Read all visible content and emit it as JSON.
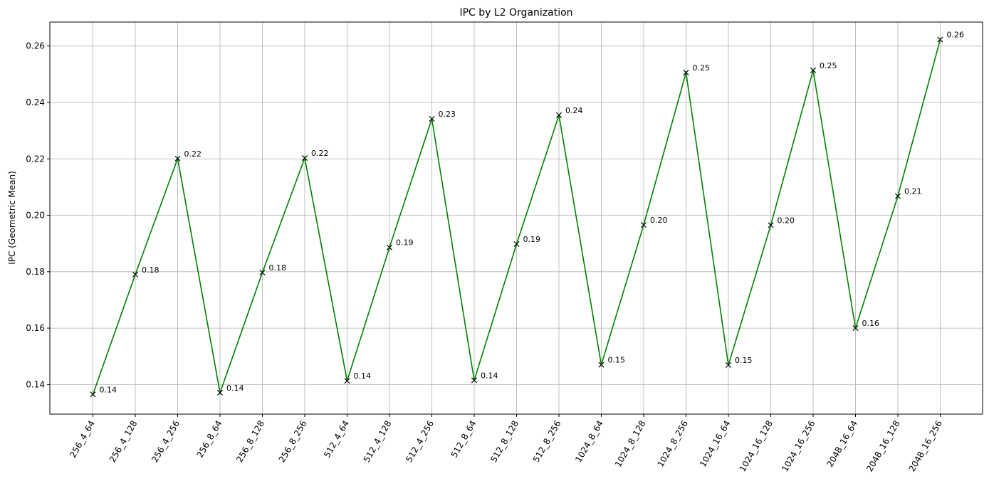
{
  "chart_data": {
    "type": "line",
    "title": "IPC by L2 Organization",
    "xlabel": "",
    "ylabel": "IPC (Geometric Mean)",
    "categories": [
      "256_4_64",
      "256_4_128",
      "256_4_256",
      "256_8_64",
      "256_8_128",
      "256_8_256",
      "512_4_64",
      "512_4_128",
      "512_4_256",
      "512_8_64",
      "512_8_128",
      "512_8_256",
      "1024_8_64",
      "1024_8_128",
      "1024_8_256",
      "1024_16_64",
      "1024_16_128",
      "1024_16_256",
      "2048_16_64",
      "2048_16_128",
      "2048_16_256"
    ],
    "series": [
      {
        "values": [
          0.1365,
          0.179,
          0.2201,
          0.1371,
          0.1797,
          0.2203,
          0.1413,
          0.1886,
          0.2342,
          0.1415,
          0.1898,
          0.2355,
          0.147,
          0.1966,
          0.2506,
          0.1469,
          0.1965,
          0.2514,
          0.16,
          0.2068,
          0.2623
        ],
        "labels": [
          "0.14",
          "0.18",
          "0.22",
          "0.14",
          "0.18",
          "0.22",
          "0.14",
          "0.19",
          "0.23",
          "0.14",
          "0.19",
          "0.24",
          "0.15",
          "0.20",
          "0.25",
          "0.15",
          "0.20",
          "0.25",
          "0.16",
          "0.21",
          "0.26"
        ],
        "line_color": "#008000",
        "marker": "x",
        "marker_color": "#000000"
      }
    ],
    "ylim": [
      0.1295,
      0.2685
    ],
    "yticks": [
      0.14,
      0.16,
      0.18,
      0.2,
      0.22,
      0.24,
      0.26
    ],
    "ytick_labels": [
      "0.14",
      "0.16",
      "0.18",
      "0.20",
      "0.22",
      "0.24",
      "0.26"
    ],
    "grid": true,
    "grid_color": "#b0b0b0",
    "xtick_rotation": -60
  }
}
